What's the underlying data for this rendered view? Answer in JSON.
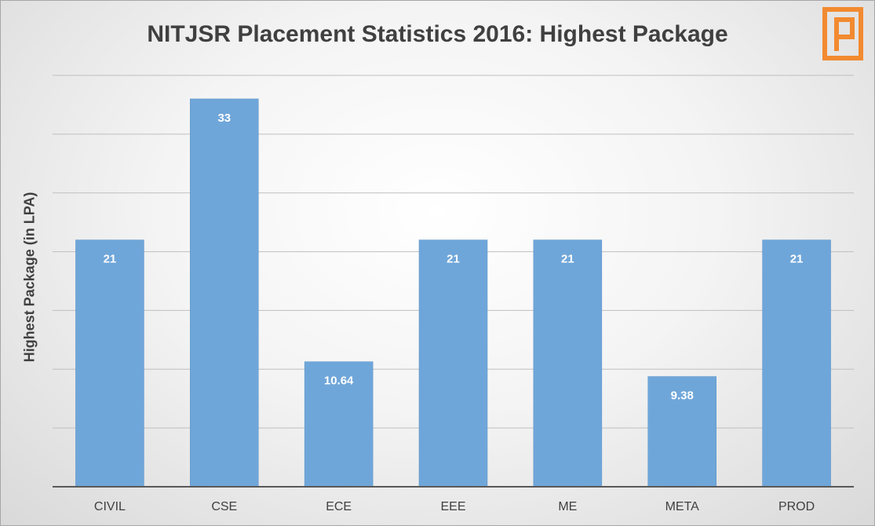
{
  "chart_data": {
    "type": "bar",
    "title": "NITJSR Placement Statistics 2016: Highest Package",
    "xlabel": "",
    "ylabel": "Highest Package (in LPA)",
    "categories": [
      "CIVIL",
      "CSE",
      "ECE",
      "EEE",
      "ME",
      "META",
      "PROD"
    ],
    "values": [
      21,
      33,
      10.64,
      21,
      21,
      9.38,
      21
    ],
    "data_labels": [
      "21",
      "33",
      "10.64",
      "21",
      "21",
      "9.38",
      "21"
    ],
    "ylim": [
      0,
      35
    ],
    "grid": true,
    "legend": "none",
    "bar_color": "#6fa6d9",
    "gridline_color": "#bfbfbf",
    "axis_color": "#595959"
  },
  "logo": {
    "icon": "placement-logo-icon",
    "color": "#f28a30"
  }
}
